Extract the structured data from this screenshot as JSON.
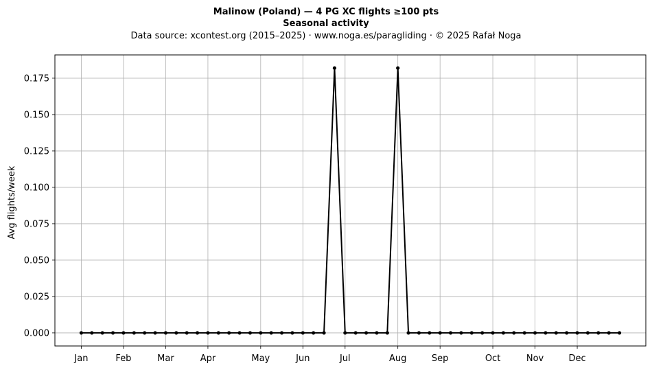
{
  "chart_data": {
    "type": "line",
    "title_line1": "Malinow (Poland)  —  4 PG XC flights ≥100 pts",
    "title_line2": "Seasonal activity",
    "subtitle": "Data source: xcontest.org (2015–2025)  ·  www.noga.es/paragliding  ·  © 2025 Rafał Noga",
    "xlabel": "",
    "ylabel": "Avg flights/week",
    "x_unit": "ISO week of year",
    "xlim": [
      -1.5,
      54.5
    ],
    "ylim": [
      -0.009,
      0.191
    ],
    "grid": true,
    "legend": "none",
    "line_color": "#000000",
    "x_ticks": [
      {
        "label": "Jan",
        "week": 1
      },
      {
        "label": "Feb",
        "week": 5
      },
      {
        "label": "Mar",
        "week": 9
      },
      {
        "label": "Apr",
        "week": 13
      },
      {
        "label": "May",
        "week": 18
      },
      {
        "label": "Jun",
        "week": 22
      },
      {
        "label": "Jul",
        "week": 26
      },
      {
        "label": "Aug",
        "week": 31
      },
      {
        "label": "Sep",
        "week": 35
      },
      {
        "label": "Oct",
        "week": 40
      },
      {
        "label": "Nov",
        "week": 44
      },
      {
        "label": "Dec",
        "week": 48
      }
    ],
    "y_ticks": [
      {
        "label": "0.000",
        "value": 0.0
      },
      {
        "label": "0.025",
        "value": 0.025
      },
      {
        "label": "0.050",
        "value": 0.05
      },
      {
        "label": "0.075",
        "value": 0.075
      },
      {
        "label": "0.100",
        "value": 0.1
      },
      {
        "label": "0.125",
        "value": 0.125
      },
      {
        "label": "0.150",
        "value": 0.15
      },
      {
        "label": "0.175",
        "value": 0.175
      }
    ],
    "x": [
      1,
      2,
      3,
      4,
      5,
      6,
      7,
      8,
      9,
      10,
      11,
      12,
      13,
      14,
      15,
      16,
      17,
      18,
      19,
      20,
      21,
      22,
      23,
      24,
      25,
      26,
      27,
      28,
      29,
      30,
      31,
      32,
      33,
      34,
      35,
      36,
      37,
      38,
      39,
      40,
      41,
      42,
      43,
      44,
      45,
      46,
      47,
      48,
      49,
      50,
      51,
      52
    ],
    "y": [
      0,
      0,
      0,
      0,
      0,
      0,
      0,
      0,
      0,
      0,
      0,
      0,
      0,
      0,
      0,
      0,
      0,
      0,
      0,
      0,
      0,
      0,
      0,
      0,
      0.182,
      0,
      0,
      0,
      0,
      0,
      0.182,
      0,
      0,
      0,
      0,
      0,
      0,
      0,
      0,
      0,
      0,
      0,
      0,
      0,
      0,
      0,
      0,
      0,
      0,
      0,
      0,
      0
    ]
  }
}
